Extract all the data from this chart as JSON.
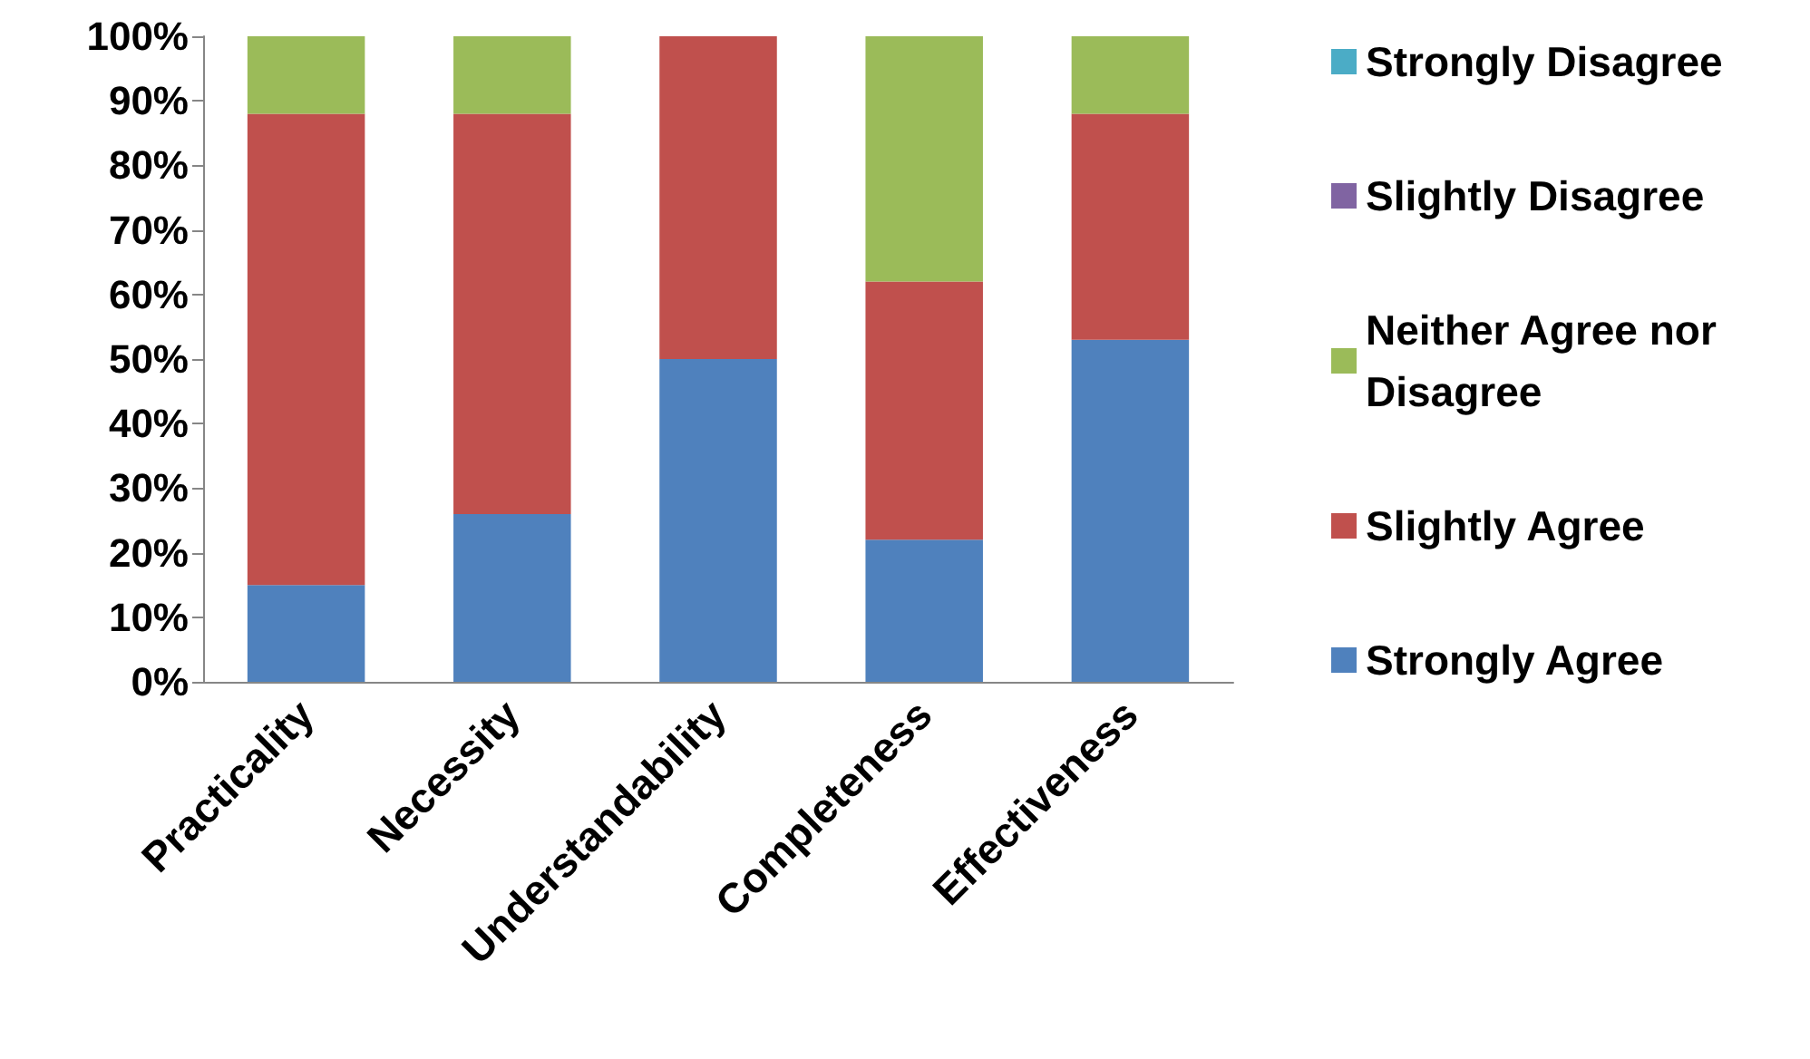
{
  "chart_data": {
    "type": "bar",
    "stacked": true,
    "categories": [
      "Practicality",
      "Necessity",
      "Understandability",
      "Completeness",
      "Effectiveness"
    ],
    "series": [
      {
        "name": "Strongly Agree",
        "color": "#4f81bd",
        "values": [
          15,
          26,
          50,
          22,
          53
        ]
      },
      {
        "name": "Slightly Agree",
        "color": "#c0504d",
        "values": [
          73,
          62,
          50,
          40,
          35
        ]
      },
      {
        "name": "Neither Agree nor Disagree",
        "color": "#9bbb59",
        "values": [
          12,
          12,
          0,
          38,
          12
        ]
      },
      {
        "name": "Slightly Disagree",
        "color": "#8064a2",
        "values": [
          0,
          0,
          0,
          0,
          0
        ]
      },
      {
        "name": "Strongly Disagree",
        "color": "#4bacc6",
        "values": [
          0,
          0,
          0,
          0,
          0
        ]
      }
    ],
    "ylim": [
      0,
      100
    ],
    "yticks": [
      {
        "value": 0,
        "label": "0%"
      },
      {
        "value": 10,
        "label": "10%"
      },
      {
        "value": 20,
        "label": "20%"
      },
      {
        "value": 30,
        "label": "30%"
      },
      {
        "value": 40,
        "label": "40%"
      },
      {
        "value": 50,
        "label": "50%"
      },
      {
        "value": 60,
        "label": "60%"
      },
      {
        "value": 70,
        "label": "70%"
      },
      {
        "value": 80,
        "label": "80%"
      },
      {
        "value": 90,
        "label": "90%"
      },
      {
        "value": 100,
        "label": "100%"
      }
    ],
    "grid": false,
    "legend": "right"
  }
}
